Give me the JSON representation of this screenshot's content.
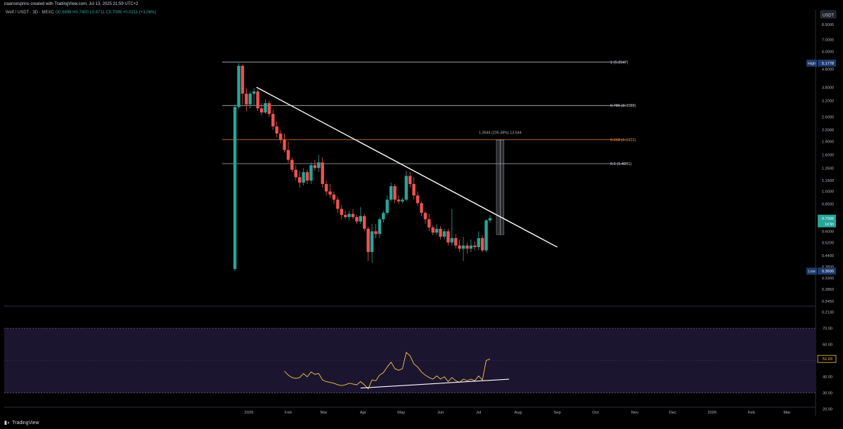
{
  "header": {
    "credit": "iraansesprins created with TradingView.com, Jul 13, 2025 21:59 UTC+2"
  },
  "symbol": {
    "name": "Welf / USDT · 3D · MEXC",
    "ohlc": "O0.6898 H0.7400 L0.6711 C0.7096 +0.0211 (+3.06%)"
  },
  "footer": {
    "brand": "TradingView"
  },
  "chart_data": [
    {
      "type": "candlestick",
      "scale": "log",
      "currency_label": "USDT",
      "ylim": [
        0.23,
        9.2
      ],
      "y_ticks": [
        "8.5000",
        "7.0000",
        "6.0000",
        "4.8000",
        "3.8000",
        "3.2000",
        "2.6000",
        "2.2000",
        "1.9000",
        "1.6000",
        "1.3500",
        "1.1500",
        "1.0000",
        "0.8500",
        "0.6000",
        "0.5200",
        "0.4400",
        "0.3800",
        "0.3300",
        "0.2850",
        "0.2450",
        "0.2130"
      ],
      "y_tick_values": [
        8.5,
        7.0,
        6.0,
        4.8,
        3.8,
        3.2,
        2.6,
        2.2,
        1.9,
        1.6,
        1.35,
        1.15,
        1.0,
        0.85,
        0.6,
        0.52,
        0.44,
        0.38,
        0.33,
        0.285,
        0.245,
        0.213
      ],
      "x_ticks": [
        "2025",
        "Feb",
        "Mar",
        "Apr",
        "May",
        "Jun",
        "Jul",
        "Aug",
        "Sep",
        "Oct",
        "Nov",
        "Dec",
        "2026",
        "Feb",
        "Mar"
      ],
      "x_tick_dates": [
        "2025-01-01",
        "2025-02-01",
        "2025-03-01",
        "2025-04-01",
        "2025-05-01",
        "2025-06-01",
        "2025-07-01",
        "2025-08-01",
        "2025-09-01",
        "2025-10-01",
        "2025-11-01",
        "2025-12-01",
        "2026-01-01",
        "2026-02-01",
        "2026-03-01"
      ],
      "price_badges": [
        {
          "label": "High",
          "value": "5.1778",
          "price": 5.1778,
          "color": "#1e3a6e"
        },
        {
          "label": "",
          "value": "0.7096",
          "sub": "1d 5h",
          "price": 0.7096,
          "color": "#26a69a"
        },
        {
          "label": "Low",
          "value": "0.3600",
          "price": 0.36,
          "color": "#1e3a6e"
        }
      ],
      "fib_levels": [
        {
          "label": "1 (5.2547)",
          "price": 5.2547,
          "color": "#d1d4dc"
        },
        {
          "label": "0.786 (3.0088)",
          "price": 3.0088,
          "color": "#d1d4dc"
        },
        {
          "label": "0.618 (1.9422)",
          "price": 1.9422,
          "color": "#ef8e3a"
        },
        {
          "label": "0.5 (1.4281)",
          "price": 1.4281,
          "color": "#d1d4dc"
        }
      ],
      "trendline": {
        "start": [
          "2025-01-07",
          3.8
        ],
        "end": [
          "2025-09-01",
          0.49
        ],
        "color": "#ffffff"
      },
      "measure": {
        "label": "1.3544 (235.38%) 13,544",
        "from": 0.575,
        "to": 1.93,
        "date_from": "2025-07-15",
        "date_to": "2025-07-21"
      },
      "candles": [
        {
          "d": "2024-12-21",
          "o": 0.37,
          "h": 3.05,
          "l": 0.36,
          "c": 2.95
        },
        {
          "d": "2024-12-24",
          "o": 2.95,
          "h": 5.18,
          "l": 2.9,
          "c": 5.0
        },
        {
          "d": "2024-12-27",
          "o": 5.0,
          "h": 5.1,
          "l": 3.05,
          "c": 3.5
        },
        {
          "d": "2024-12-30",
          "o": 3.5,
          "h": 3.75,
          "l": 2.8,
          "c": 3.05
        },
        {
          "d": "2025-01-02",
          "o": 3.05,
          "h": 3.6,
          "l": 2.9,
          "c": 3.5
        },
        {
          "d": "2025-01-05",
          "o": 3.5,
          "h": 3.75,
          "l": 3.0,
          "c": 3.6
        },
        {
          "d": "2025-01-08",
          "o": 3.6,
          "h": 3.7,
          "l": 2.8,
          "c": 2.9
        },
        {
          "d": "2025-01-11",
          "o": 2.9,
          "h": 3.1,
          "l": 2.65,
          "c": 2.75
        },
        {
          "d": "2025-01-14",
          "o": 2.75,
          "h": 3.25,
          "l": 2.7,
          "c": 3.1
        },
        {
          "d": "2025-01-17",
          "o": 3.1,
          "h": 3.2,
          "l": 2.6,
          "c": 2.7
        },
        {
          "d": "2025-01-20",
          "o": 2.7,
          "h": 2.85,
          "l": 2.2,
          "c": 2.3
        },
        {
          "d": "2025-01-23",
          "o": 2.3,
          "h": 2.45,
          "l": 2.0,
          "c": 2.1
        },
        {
          "d": "2025-01-26",
          "o": 2.1,
          "h": 2.2,
          "l": 1.85,
          "c": 1.95
        },
        {
          "d": "2025-01-29",
          "o": 1.95,
          "h": 2.1,
          "l": 1.65,
          "c": 1.7
        },
        {
          "d": "2025-02-01",
          "o": 1.7,
          "h": 1.9,
          "l": 1.45,
          "c": 1.5
        },
        {
          "d": "2025-02-04",
          "o": 1.5,
          "h": 1.55,
          "l": 1.28,
          "c": 1.32
        },
        {
          "d": "2025-02-07",
          "o": 1.32,
          "h": 1.4,
          "l": 1.15,
          "c": 1.2
        },
        {
          "d": "2025-02-10",
          "o": 1.2,
          "h": 1.3,
          "l": 1.05,
          "c": 1.12
        },
        {
          "d": "2025-02-13",
          "o": 1.12,
          "h": 1.35,
          "l": 1.08,
          "c": 1.28
        },
        {
          "d": "2025-02-16",
          "o": 1.28,
          "h": 1.32,
          "l": 1.1,
          "c": 1.15
        },
        {
          "d": "2025-02-19",
          "o": 1.15,
          "h": 1.45,
          "l": 1.1,
          "c": 1.4
        },
        {
          "d": "2025-02-22",
          "o": 1.4,
          "h": 1.5,
          "l": 1.3,
          "c": 1.35
        },
        {
          "d": "2025-02-25",
          "o": 1.35,
          "h": 1.6,
          "l": 1.28,
          "c": 1.45
        },
        {
          "d": "2025-02-28",
          "o": 1.45,
          "h": 1.55,
          "l": 1.05,
          "c": 1.1
        },
        {
          "d": "2025-03-03",
          "o": 1.1,
          "h": 1.15,
          "l": 0.95,
          "c": 1.0
        },
        {
          "d": "2025-03-06",
          "o": 1.0,
          "h": 1.1,
          "l": 0.92,
          "c": 0.96
        },
        {
          "d": "2025-03-09",
          "o": 0.96,
          "h": 1.0,
          "l": 0.85,
          "c": 0.9
        },
        {
          "d": "2025-03-12",
          "o": 0.9,
          "h": 0.93,
          "l": 0.76,
          "c": 0.8
        },
        {
          "d": "2025-03-15",
          "o": 0.8,
          "h": 0.84,
          "l": 0.7,
          "c": 0.74
        },
        {
          "d": "2025-03-18",
          "o": 0.74,
          "h": 0.78,
          "l": 0.7,
          "c": 0.72
        },
        {
          "d": "2025-03-21",
          "o": 0.72,
          "h": 0.78,
          "l": 0.69,
          "c": 0.75
        },
        {
          "d": "2025-03-24",
          "o": 0.75,
          "h": 0.8,
          "l": 0.7,
          "c": 0.72
        },
        {
          "d": "2025-03-27",
          "o": 0.72,
          "h": 0.74,
          "l": 0.66,
          "c": 0.68
        },
        {
          "d": "2025-03-30",
          "o": 0.68,
          "h": 0.82,
          "l": 0.66,
          "c": 0.73
        },
        {
          "d": "2025-04-02",
          "o": 0.73,
          "h": 0.75,
          "l": 0.6,
          "c": 0.62
        },
        {
          "d": "2025-04-05",
          "o": 0.62,
          "h": 0.64,
          "l": 0.41,
          "c": 0.46
        },
        {
          "d": "2025-04-08",
          "o": 0.46,
          "h": 0.66,
          "l": 0.4,
          "c": 0.6
        },
        {
          "d": "2025-04-11",
          "o": 0.6,
          "h": 0.66,
          "l": 0.55,
          "c": 0.58
        },
        {
          "d": "2025-04-14",
          "o": 0.58,
          "h": 0.72,
          "l": 0.55,
          "c": 0.7
        },
        {
          "d": "2025-04-17",
          "o": 0.7,
          "h": 0.78,
          "l": 0.67,
          "c": 0.76
        },
        {
          "d": "2025-04-20",
          "o": 0.76,
          "h": 0.95,
          "l": 0.74,
          "c": 0.9
        },
        {
          "d": "2025-04-23",
          "o": 0.9,
          "h": 1.12,
          "l": 0.88,
          "c": 1.07
        },
        {
          "d": "2025-04-26",
          "o": 1.07,
          "h": 1.1,
          "l": 0.86,
          "c": 0.9
        },
        {
          "d": "2025-04-29",
          "o": 0.9,
          "h": 0.95,
          "l": 0.85,
          "c": 0.88
        },
        {
          "d": "2025-05-02",
          "o": 0.88,
          "h": 0.92,
          "l": 0.86,
          "c": 0.9
        },
        {
          "d": "2025-05-05",
          "o": 0.9,
          "h": 1.3,
          "l": 0.88,
          "c": 1.22
        },
        {
          "d": "2025-05-08",
          "o": 1.22,
          "h": 1.28,
          "l": 1.05,
          "c": 1.1
        },
        {
          "d": "2025-05-11",
          "o": 1.1,
          "h": 1.2,
          "l": 0.9,
          "c": 0.95
        },
        {
          "d": "2025-05-14",
          "o": 0.95,
          "h": 1.0,
          "l": 0.83,
          "c": 0.86
        },
        {
          "d": "2025-05-17",
          "o": 0.86,
          "h": 0.88,
          "l": 0.73,
          "c": 0.76
        },
        {
          "d": "2025-05-20",
          "o": 0.76,
          "h": 0.78,
          "l": 0.66,
          "c": 0.7
        },
        {
          "d": "2025-05-23",
          "o": 0.7,
          "h": 0.75,
          "l": 0.6,
          "c": 0.63
        },
        {
          "d": "2025-05-26",
          "o": 0.63,
          "h": 0.65,
          "l": 0.57,
          "c": 0.59
        },
        {
          "d": "2025-05-29",
          "o": 0.59,
          "h": 0.66,
          "l": 0.57,
          "c": 0.62
        },
        {
          "d": "2025-06-01",
          "o": 0.62,
          "h": 0.64,
          "l": 0.54,
          "c": 0.56
        },
        {
          "d": "2025-06-04",
          "o": 0.56,
          "h": 0.62,
          "l": 0.54,
          "c": 0.6
        },
        {
          "d": "2025-06-07",
          "o": 0.6,
          "h": 0.62,
          "l": 0.5,
          "c": 0.52
        },
        {
          "d": "2025-06-10",
          "o": 0.52,
          "h": 0.8,
          "l": 0.5,
          "c": 0.55
        },
        {
          "d": "2025-06-13",
          "o": 0.55,
          "h": 0.58,
          "l": 0.48,
          "c": 0.5
        },
        {
          "d": "2025-06-16",
          "o": 0.5,
          "h": 0.54,
          "l": 0.46,
          "c": 0.48
        },
        {
          "d": "2025-06-19",
          "o": 0.48,
          "h": 0.56,
          "l": 0.41,
          "c": 0.5
        },
        {
          "d": "2025-06-22",
          "o": 0.5,
          "h": 0.52,
          "l": 0.45,
          "c": 0.48
        },
        {
          "d": "2025-06-25",
          "o": 0.48,
          "h": 0.54,
          "l": 0.46,
          "c": 0.5
        },
        {
          "d": "2025-06-28",
          "o": 0.5,
          "h": 0.53,
          "l": 0.47,
          "c": 0.49
        },
        {
          "d": "2025-07-01",
          "o": 0.49,
          "h": 0.6,
          "l": 0.47,
          "c": 0.55
        },
        {
          "d": "2025-07-04",
          "o": 0.55,
          "h": 0.57,
          "l": 0.46,
          "c": 0.47
        },
        {
          "d": "2025-07-07",
          "o": 0.47,
          "h": 0.7,
          "l": 0.46,
          "c": 0.69
        },
        {
          "d": "2025-07-10",
          "o": 0.69,
          "h": 0.74,
          "l": 0.67,
          "c": 0.71
        }
      ]
    },
    {
      "type": "line",
      "indicator": "oscillator",
      "ylim": [
        22,
        75
      ],
      "y_ticks": [
        "70.00",
        "60.00",
        "50.00",
        "40.00",
        "30.00",
        "20.00"
      ],
      "y_tick_values": [
        70,
        60,
        50,
        40,
        30,
        20
      ],
      "band": [
        30,
        70
      ],
      "badge": {
        "value": "51.03",
        "v": 51.03,
        "color": "#f7c948"
      },
      "line_color": "#f7c948",
      "points": [
        [
          "2025-01-29",
          43.5
        ],
        [
          "2025-02-01",
          41
        ],
        [
          "2025-02-04",
          39.5
        ],
        [
          "2025-02-07",
          39
        ],
        [
          "2025-02-10",
          39.5
        ],
        [
          "2025-02-13",
          42
        ],
        [
          "2025-02-16",
          40
        ],
        [
          "2025-02-19",
          43
        ],
        [
          "2025-02-22",
          41.5
        ],
        [
          "2025-02-25",
          42
        ],
        [
          "2025-02-28",
          38
        ],
        [
          "2025-03-03",
          37
        ],
        [
          "2025-03-06",
          36.5
        ],
        [
          "2025-03-09",
          36
        ],
        [
          "2025-03-12",
          35
        ],
        [
          "2025-03-15",
          34.5
        ],
        [
          "2025-03-18",
          35
        ],
        [
          "2025-03-21",
          36
        ],
        [
          "2025-03-24",
          35.5
        ],
        [
          "2025-03-27",
          35
        ],
        [
          "2025-03-30",
          37
        ],
        [
          "2025-04-02",
          35
        ],
        [
          "2025-04-05",
          32.5
        ],
        [
          "2025-04-08",
          38
        ],
        [
          "2025-04-11",
          37.5
        ],
        [
          "2025-04-14",
          41
        ],
        [
          "2025-04-17",
          42.5
        ],
        [
          "2025-04-20",
          46
        ],
        [
          "2025-04-23",
          49
        ],
        [
          "2025-04-26",
          45
        ],
        [
          "2025-04-29",
          44
        ],
        [
          "2025-05-02",
          45
        ],
        [
          "2025-05-05",
          55
        ],
        [
          "2025-05-08",
          53
        ],
        [
          "2025-05-11",
          48
        ],
        [
          "2025-05-14",
          46
        ],
        [
          "2025-05-17",
          43
        ],
        [
          "2025-05-20",
          41
        ],
        [
          "2025-05-23",
          39.5
        ],
        [
          "2025-05-26",
          38.5
        ],
        [
          "2025-05-29",
          40.5
        ],
        [
          "2025-06-01",
          38.5
        ],
        [
          "2025-06-04",
          40
        ],
        [
          "2025-06-07",
          37
        ],
        [
          "2025-06-10",
          39.5
        ],
        [
          "2025-06-13",
          37.5
        ],
        [
          "2025-06-16",
          36.5
        ],
        [
          "2025-06-19",
          38.5
        ],
        [
          "2025-06-22",
          37.5
        ],
        [
          "2025-06-25",
          38.5
        ],
        [
          "2025-06-28",
          37.5
        ],
        [
          "2025-07-01",
          40.5
        ],
        [
          "2025-07-04",
          38
        ],
        [
          "2025-07-07",
          50
        ],
        [
          "2025-07-10",
          51.03
        ]
      ],
      "trendline": {
        "start": [
          "2025-03-30",
          33
        ],
        "end": [
          "2025-07-25",
          38.5
        ],
        "color": "#ffffff"
      }
    }
  ]
}
